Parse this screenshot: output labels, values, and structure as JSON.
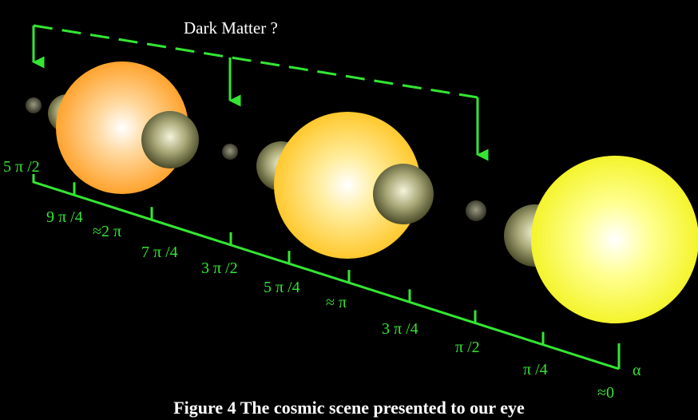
{
  "title": "Dark Matter ?",
  "caption": "Figure 4 The cosmic scene presented to our eye",
  "axis": {
    "labels": [
      "5 π /2",
      "9 π /4",
      "≈2 π",
      "7 π /4",
      "3 π /2",
      "5 π /4",
      "≈ π",
      "3 π /4",
      "π /2",
      "π /4",
      "≈0"
    ],
    "symbol": "α"
  }
}
